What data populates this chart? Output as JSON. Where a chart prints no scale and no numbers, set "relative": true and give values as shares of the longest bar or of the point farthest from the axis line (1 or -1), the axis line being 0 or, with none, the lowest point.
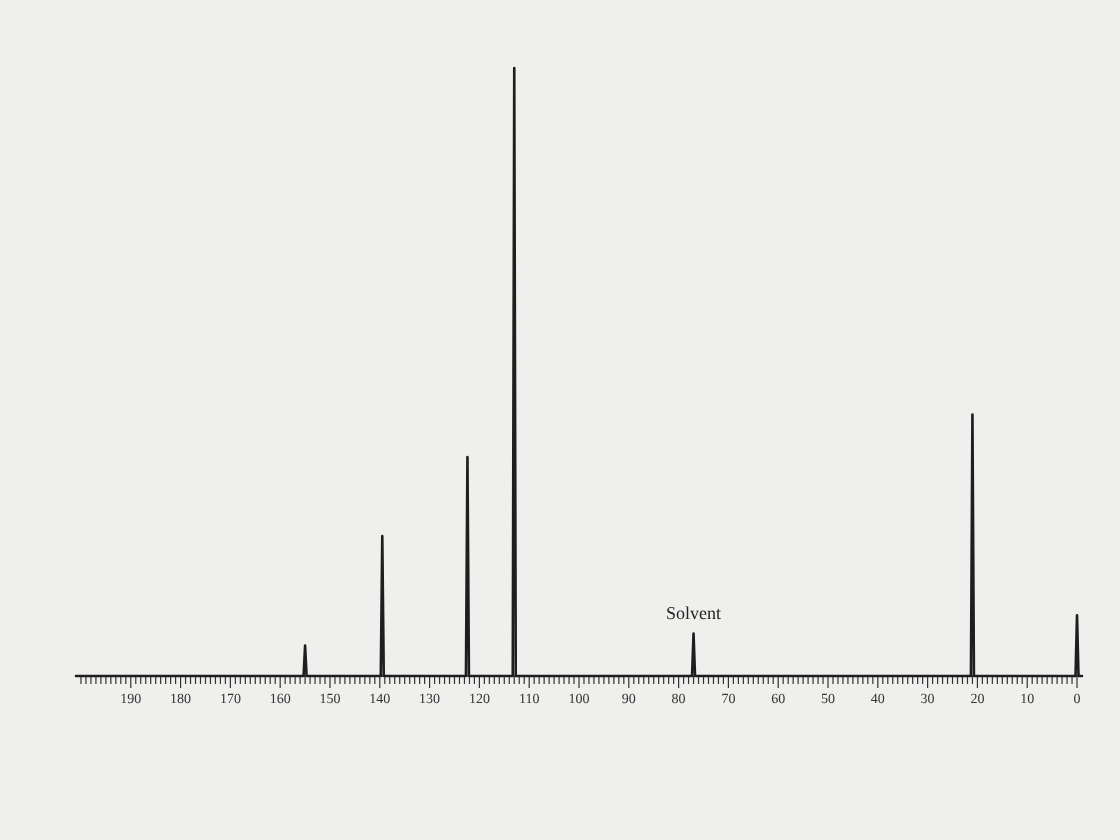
{
  "chart_data": {
    "type": "line",
    "relative": true,
    "color": "#1e1e1e",
    "x": [
      201,
      155.3,
      155,
      154.7,
      139.8,
      139.5,
      139.2,
      122.7,
      122.4,
      122.1,
      113.3,
      113,
      112.7,
      77.3,
      77,
      76.7,
      21.3,
      21,
      20.7,
      0.3,
      0,
      -0.3,
      -1
    ],
    "values": [
      0,
      0,
      0.05,
      0,
      0,
      0.23,
      0,
      0,
      0.36,
      0,
      0,
      1,
      0,
      0,
      0.07,
      0,
      0,
      0.43,
      0,
      0,
      0.1,
      0,
      0
    ],
    "xlim": [
      201,
      -1
    ],
    "xticks": [
      {
        "value": 200,
        "label": null
      },
      {
        "value": 199,
        "label": null
      },
      {
        "value": 198,
        "label": null
      },
      {
        "value": 197,
        "label": null
      },
      {
        "value": 196,
        "label": null
      },
      {
        "value": 195,
        "label": null
      },
      {
        "value": 194,
        "label": null
      },
      {
        "value": 193,
        "label": null
      },
      {
        "value": 192,
        "label": null
      },
      {
        "value": 191,
        "label": null
      },
      190,
      {
        "value": 189,
        "label": null
      },
      {
        "value": 188,
        "label": null
      },
      {
        "value": 187,
        "label": null
      },
      {
        "value": 186,
        "label": null
      },
      {
        "value": 185,
        "label": null
      },
      {
        "value": 184,
        "label": null
      },
      {
        "value": 183,
        "label": null
      },
      {
        "value": 182,
        "label": null
      },
      {
        "value": 181,
        "label": null
      },
      180,
      {
        "value": 179,
        "label": null
      },
      {
        "value": 178,
        "label": null
      },
      {
        "value": 177,
        "label": null
      },
      {
        "value": 176,
        "label": null
      },
      {
        "value": 175,
        "label": null
      },
      {
        "value": 174,
        "label": null
      },
      {
        "value": 173,
        "label": null
      },
      {
        "value": 172,
        "label": null
      },
      {
        "value": 171,
        "label": null
      },
      170,
      {
        "value": 169,
        "label": null
      },
      {
        "value": 168,
        "label": null
      },
      {
        "value": 167,
        "label": null
      },
      {
        "value": 166,
        "label": null
      },
      {
        "value": 165,
        "label": null
      },
      {
        "value": 164,
        "label": null
      },
      {
        "value": 163,
        "label": null
      },
      {
        "value": 162,
        "label": null
      },
      {
        "value": 161,
        "label": null
      },
      160,
      {
        "value": 159,
        "label": null
      },
      {
        "value": 158,
        "label": null
      },
      {
        "value": 157,
        "label": null
      },
      {
        "value": 156,
        "label": null
      },
      {
        "value": 155,
        "label": null
      },
      {
        "value": 154,
        "label": null
      },
      {
        "value": 153,
        "label": null
      },
      {
        "value": 152,
        "label": null
      },
      {
        "value": 151,
        "label": null
      },
      150,
      {
        "value": 149,
        "label": null
      },
      {
        "value": 148,
        "label": null
      },
      {
        "value": 147,
        "label": null
      },
      {
        "value": 146,
        "label": null
      },
      {
        "value": 145,
        "label": null
      },
      {
        "value": 144,
        "label": null
      },
      {
        "value": 143,
        "label": null
      },
      {
        "value": 142,
        "label": null
      },
      {
        "value": 141,
        "label": null
      },
      140,
      {
        "value": 139,
        "label": null
      },
      {
        "value": 138,
        "label": null
      },
      {
        "value": 137,
        "label": null
      },
      {
        "value": 136,
        "label": null
      },
      {
        "value": 135,
        "label": null
      },
      {
        "value": 134,
        "label": null
      },
      {
        "value": 133,
        "label": null
      },
      {
        "value": 132,
        "label": null
      },
      {
        "value": 131,
        "label": null
      },
      130,
      {
        "value": 129,
        "label": null
      },
      {
        "value": 128,
        "label": null
      },
      {
        "value": 127,
        "label": null
      },
      {
        "value": 126,
        "label": null
      },
      {
        "value": 125,
        "label": null
      },
      {
        "value": 124,
        "label": null
      },
      {
        "value": 123,
        "label": null
      },
      {
        "value": 122,
        "label": null
      },
      {
        "value": 121,
        "label": null
      },
      120,
      {
        "value": 119,
        "label": null
      },
      {
        "value": 118,
        "label": null
      },
      {
        "value": 117,
        "label": null
      },
      {
        "value": 116,
        "label": null
      },
      {
        "value": 115,
        "label": null
      },
      {
        "value": 114,
        "label": null
      },
      {
        "value": 113,
        "label": null
      },
      {
        "value": 112,
        "label": null
      },
      {
        "value": 111,
        "label": null
      },
      110,
      {
        "value": 109,
        "label": null
      },
      {
        "value": 108,
        "label": null
      },
      {
        "value": 107,
        "label": null
      },
      {
        "value": 106,
        "label": null
      },
      {
        "value": 105,
        "label": null
      },
      {
        "value": 104,
        "label": null
      },
      {
        "value": 103,
        "label": null
      },
      {
        "value": 102,
        "label": null
      },
      {
        "value": 101,
        "label": null
      },
      100,
      {
        "value": 99,
        "label": null
      },
      {
        "value": 98,
        "label": null
      },
      {
        "value": 97,
        "label": null
      },
      {
        "value": 96,
        "label": null
      },
      {
        "value": 95,
        "label": null
      },
      {
        "value": 94,
        "label": null
      },
      {
        "value": 93,
        "label": null
      },
      {
        "value": 92,
        "label": null
      },
      {
        "value": 91,
        "label": null
      },
      90,
      {
        "value": 89,
        "label": null
      },
      {
        "value": 88,
        "label": null
      },
      {
        "value": 87,
        "label": null
      },
      {
        "value": 86,
        "label": null
      },
      {
        "value": 85,
        "label": null
      },
      {
        "value": 84,
        "label": null
      },
      {
        "value": 83,
        "label": null
      },
      {
        "value": 82,
        "label": null
      },
      {
        "value": 81,
        "label": null
      },
      80,
      {
        "value": 79,
        "label": null
      },
      {
        "value": 78,
        "label": null
      },
      {
        "value": 77,
        "label": null
      },
      {
        "value": 76,
        "label": null
      },
      {
        "value": 75,
        "label": null
      },
      {
        "value": 74,
        "label": null
      },
      {
        "value": 73,
        "label": null
      },
      {
        "value": 72,
        "label": null
      },
      {
        "value": 71,
        "label": null
      },
      70,
      {
        "value": 69,
        "label": null
      },
      {
        "value": 68,
        "label": null
      },
      {
        "value": 67,
        "label": null
      },
      {
        "value": 66,
        "label": null
      },
      {
        "value": 65,
        "label": null
      },
      {
        "value": 64,
        "label": null
      },
      {
        "value": 63,
        "label": null
      },
      {
        "value": 62,
        "label": null
      },
      {
        "value": 61,
        "label": null
      },
      60,
      {
        "value": 59,
        "label": null
      },
      {
        "value": 58,
        "label": null
      },
      {
        "value": 57,
        "label": null
      },
      {
        "value": 56,
        "label": null
      },
      {
        "value": 55,
        "label": null
      },
      {
        "value": 54,
        "label": null
      },
      {
        "value": 53,
        "label": null
      },
      {
        "value": 52,
        "label": null
      },
      {
        "value": 51,
        "label": null
      },
      50,
      {
        "value": 49,
        "label": null
      },
      {
        "value": 48,
        "label": null
      },
      {
        "value": 47,
        "label": null
      },
      {
        "value": 46,
        "label": null
      },
      {
        "value": 45,
        "label": null
      },
      {
        "value": 44,
        "label": null
      },
      {
        "value": 43,
        "label": null
      },
      {
        "value": 42,
        "label": null
      },
      {
        "value": 41,
        "label": null
      },
      40,
      {
        "value": 39,
        "label": null
      },
      {
        "value": 38,
        "label": null
      },
      {
        "value": 37,
        "label": null
      },
      {
        "value": 36,
        "label": null
      },
      {
        "value": 35,
        "label": null
      },
      {
        "value": 34,
        "label": null
      },
      {
        "value": 33,
        "label": null
      },
      {
        "value": 32,
        "label": null
      },
      {
        "value": 31,
        "label": null
      },
      30,
      {
        "value": 29,
        "label": null
      },
      {
        "value": 28,
        "label": null
      },
      {
        "value": 27,
        "label": null
      },
      {
        "value": 26,
        "label": null
      },
      {
        "value": 25,
        "label": null
      },
      {
        "value": 24,
        "label": null
      },
      {
        "value": 23,
        "label": null
      },
      {
        "value": 22,
        "label": null
      },
      {
        "value": 21,
        "label": null
      },
      20,
      {
        "value": 19,
        "label": null
      },
      {
        "value": 18,
        "label": null
      },
      {
        "value": 17,
        "label": null
      },
      {
        "value": 16,
        "label": null
      },
      {
        "value": 15,
        "label": null
      },
      {
        "value": 14,
        "label": null
      },
      {
        "value": 13,
        "label": null
      },
      {
        "value": 12,
        "label": null
      },
      {
        "value": 11,
        "label": null
      },
      10,
      {
        "value": 9,
        "label": null
      },
      {
        "value": 8,
        "label": null
      },
      {
        "value": 7,
        "label": null
      },
      {
        "value": 6,
        "label": null
      },
      {
        "value": 5,
        "label": null
      },
      {
        "value": 4,
        "label": null
      },
      {
        "value": 3,
        "label": null
      },
      {
        "value": 2,
        "label": null
      },
      {
        "value": 1,
        "label": null
      },
      0
    ],
    "annotations": [
      {
        "text": "Solvent",
        "x": 77,
        "y": 0.07
      }
    ]
  }
}
